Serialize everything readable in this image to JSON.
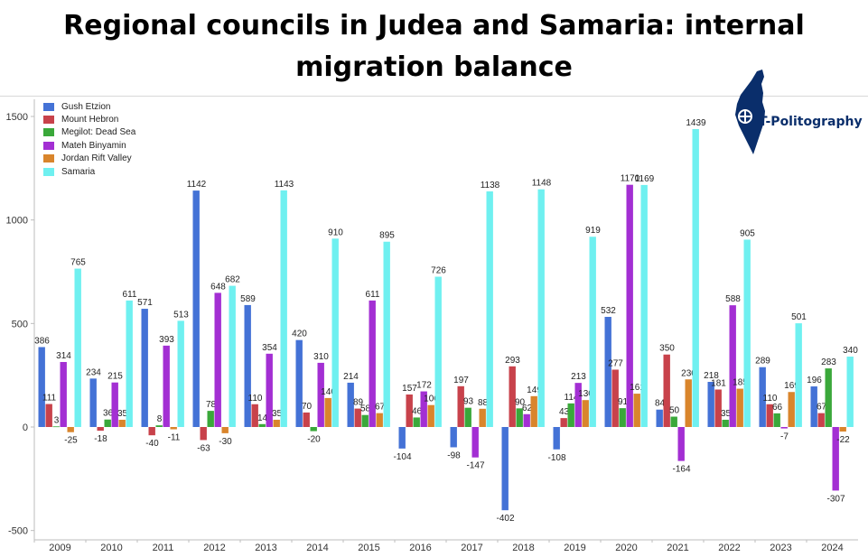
{
  "title_line1": "Regional councils in Judea and Samaria: internal",
  "title_line2": "migration balance",
  "logo_text": "T-Politography",
  "chart_data": {
    "type": "bar",
    "categories": [
      "2009",
      "2010",
      "2011",
      "2012",
      "2013",
      "2014",
      "2015",
      "2016",
      "2017",
      "2018",
      "2019",
      "2020",
      "2021",
      "2022",
      "2023",
      "2024"
    ],
    "ylim": [
      -520,
      1600
    ],
    "yticks": [
      -500,
      0,
      500,
      1000,
      1500
    ],
    "legend_position": "top-left",
    "grid": false,
    "series": [
      {
        "name": "Gush Etzion",
        "color": "#4472d6",
        "values": [
          386,
          234,
          571,
          1142,
          589,
          420,
          214,
          -104,
          -98,
          -402,
          -108,
          532,
          84,
          218,
          289,
          196
        ]
      },
      {
        "name": "Mount Hebron",
        "color": "#c8424b",
        "values": [
          111,
          -18,
          -40,
          -63,
          110,
          70,
          89,
          157,
          197,
          293,
          43,
          277,
          350,
          181,
          110,
          67
        ]
      },
      {
        "name": "Megilot: Dead Sea",
        "color": "#3aa83a",
        "values": [
          3,
          36,
          8,
          78,
          14,
          -20,
          58,
          46,
          93,
          90,
          114,
          91,
          50,
          35,
          66,
          283
        ]
      },
      {
        "name": "Mateh Binyamin",
        "color": "#a32fd3",
        "values": [
          314,
          215,
          393,
          648,
          354,
          310,
          611,
          172,
          -147,
          62,
          213,
          1170,
          -164,
          588,
          -7,
          -307
        ]
      },
      {
        "name": "Jordan Rift Valley",
        "color": "#d9852c",
        "values": [
          -25,
          35,
          -11,
          -30,
          35,
          140,
          67,
          106,
          88,
          149,
          130,
          161,
          230,
          185,
          169,
          -22
        ]
      },
      {
        "name": "Samaria",
        "color": "#6ff0f0",
        "values": [
          765,
          611,
          513,
          682,
          1143,
          910,
          895,
          726,
          1138,
          1148,
          919,
          1169,
          1439,
          905,
          501,
          340
        ]
      }
    ]
  }
}
